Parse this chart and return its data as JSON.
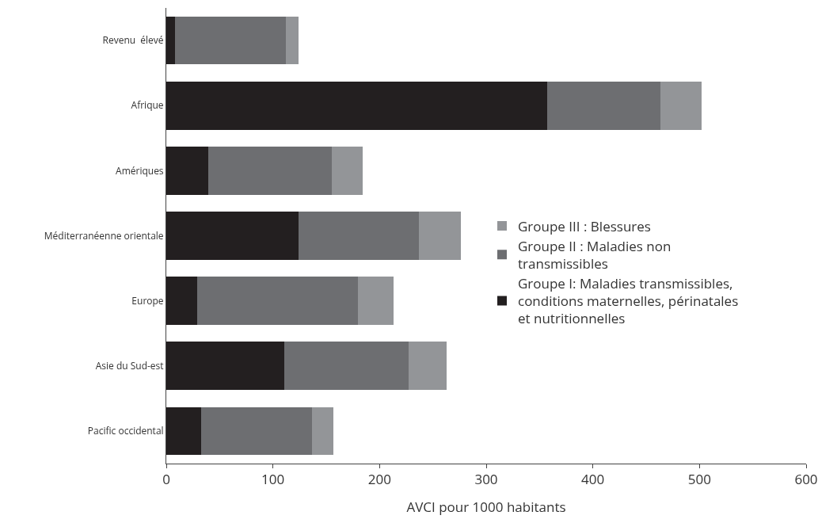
{
  "chart_data": {
    "type": "bar",
    "orientation": "horizontal",
    "stacked": true,
    "xlabel": "AVCI pour 1000 habitants",
    "categories": [
      "Revenu  élevé",
      "Afrique",
      "Amériques",
      "Méditerranéenne orientale",
      "Europe",
      "Asie du Sud-est",
      "Pacific occidental"
    ],
    "series": [
      {
        "name": "Groupe I: Maladies transmissibles, conditions maternelles, périnatales et nutritionnelles",
        "color": "#231f20",
        "values": [
          8,
          357,
          39,
          124,
          29,
          111,
          33
        ]
      },
      {
        "name": "Groupe II : Maladies non transmissibles",
        "color": "#6d6e71",
        "values": [
          104,
          106,
          116,
          113,
          151,
          116,
          104
        ]
      },
      {
        "name": "Groupe III : Blessures",
        "color": "#939598",
        "values": [
          12,
          39,
          29,
          39,
          33,
          36,
          20
        ]
      }
    ],
    "xlim": [
      0,
      600
    ],
    "xticks": [
      0,
      100,
      200,
      300,
      400,
      500,
      600
    ],
    "grid": false,
    "legend": "right"
  }
}
